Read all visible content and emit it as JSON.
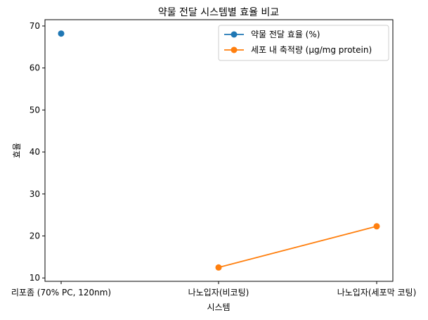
{
  "chart_data": {
    "type": "line",
    "title": "약물 전달 시스템별 효율 비교",
    "xlabel": "시스템",
    "ylabel": "효율",
    "categories": [
      "리포좀 (70% PC, 120nm)",
      "나노입자(비코팅)",
      "나노입자(세포막 코팅)"
    ],
    "yticks": [
      10,
      20,
      30,
      40,
      50,
      60,
      70
    ],
    "ylim": [
      9.2,
      71.5
    ],
    "grid": false,
    "legend_position": "top-right",
    "series": [
      {
        "name": "약물 전달 효율 (%)",
        "color": "#1f77b4",
        "values": [
          68.2,
          null,
          null
        ]
      },
      {
        "name": "세포 내 축적량 (μg/mg protein)",
        "color": "#ff7f0e",
        "values": [
          null,
          12.5,
          22.3
        ]
      }
    ]
  }
}
